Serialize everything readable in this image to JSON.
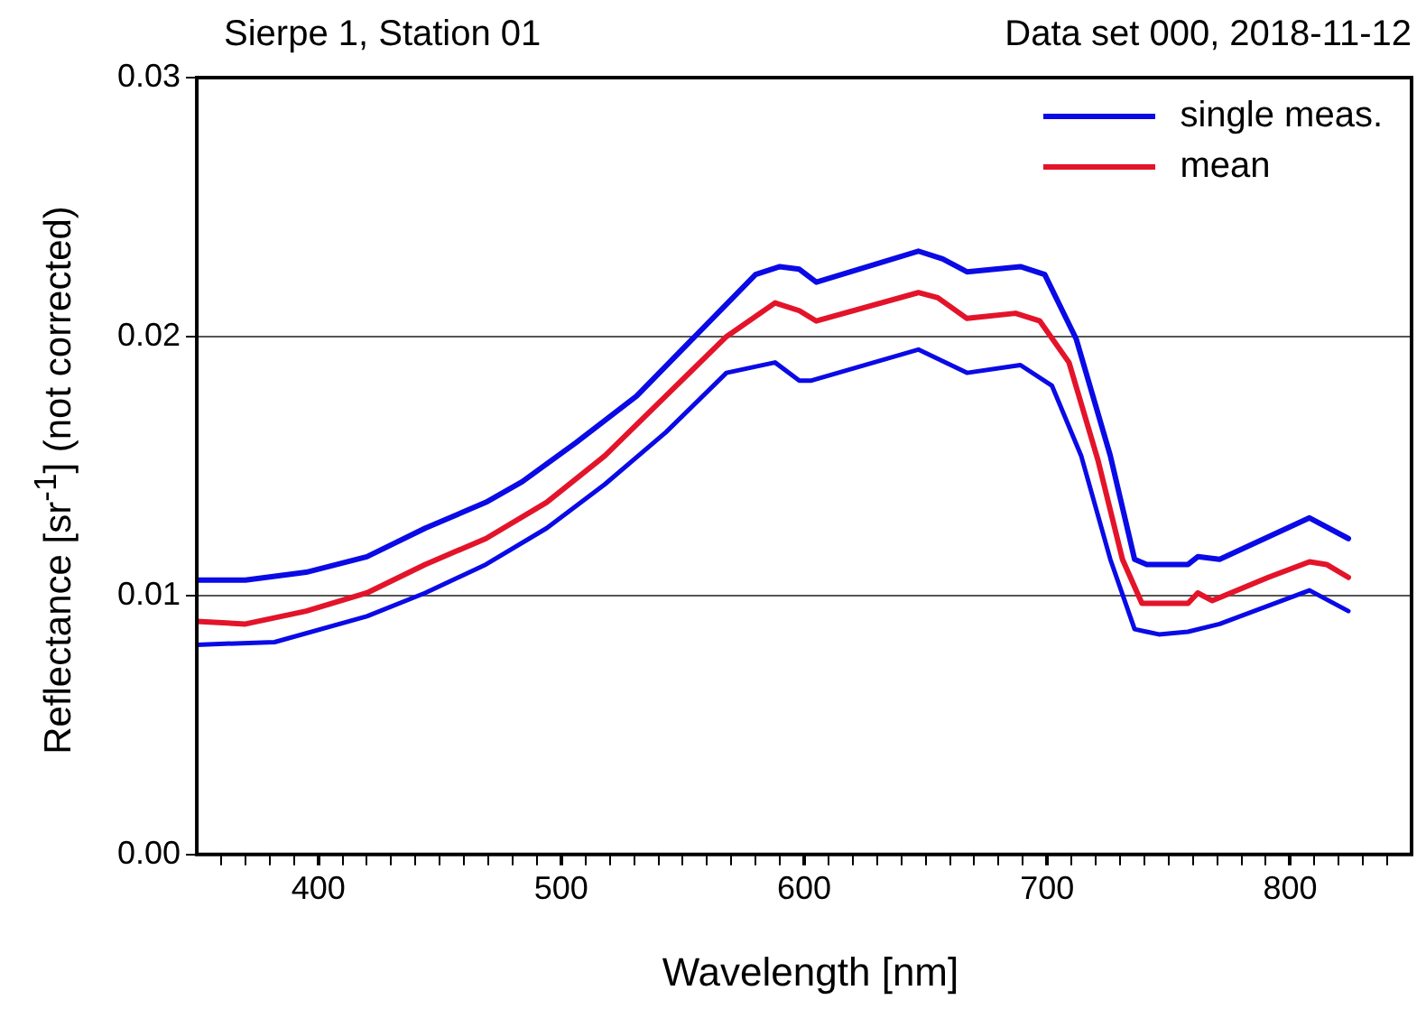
{
  "chart_data": {
    "type": "line",
    "title": "Sierpe 1, Station 01",
    "subtitle": "Data set 000, 2018-11-12",
    "xlabel": "Wavelength [nm]",
    "ylabel": "Reflectance [sr$^{-1}$] (not corrected)",
    "xlim": [
      350,
      850
    ],
    "xticks": [
      {
        "value": 360,
        "label": null
      },
      {
        "value": 370,
        "label": null
      },
      {
        "value": 380,
        "label": null
      },
      {
        "value": 390,
        "label": null
      },
      400,
      {
        "value": 410,
        "label": null
      },
      {
        "value": 420,
        "label": null
      },
      {
        "value": 430,
        "label": null
      },
      {
        "value": 440,
        "label": null
      },
      {
        "value": 450,
        "label": null
      },
      {
        "value": 460,
        "label": null
      },
      {
        "value": 470,
        "label": null
      },
      {
        "value": 480,
        "label": null
      },
      {
        "value": 490,
        "label": null
      },
      500,
      {
        "value": 510,
        "label": null
      },
      {
        "value": 520,
        "label": null
      },
      {
        "value": 530,
        "label": null
      },
      {
        "value": 540,
        "label": null
      },
      {
        "value": 550,
        "label": null
      },
      {
        "value": 560,
        "label": null
      },
      {
        "value": 570,
        "label": null
      },
      {
        "value": 580,
        "label": null
      },
      {
        "value": 590,
        "label": null
      },
      600,
      {
        "value": 610,
        "label": null
      },
      {
        "value": 620,
        "label": null
      },
      {
        "value": 630,
        "label": null
      },
      {
        "value": 640,
        "label": null
      },
      {
        "value": 650,
        "label": null
      },
      {
        "value": 660,
        "label": null
      },
      {
        "value": 670,
        "label": null
      },
      {
        "value": 680,
        "label": null
      },
      {
        "value": 690,
        "label": null
      },
      700,
      {
        "value": 710,
        "label": null
      },
      {
        "value": 720,
        "label": null
      },
      {
        "value": 730,
        "label": null
      },
      {
        "value": 740,
        "label": null
      },
      {
        "value": 750,
        "label": null
      },
      {
        "value": 760,
        "label": null
      },
      {
        "value": 770,
        "label": null
      },
      {
        "value": 780,
        "label": null
      },
      {
        "value": 790,
        "label": null
      },
      800,
      {
        "value": 810,
        "label": null
      },
      {
        "value": 820,
        "label": null
      },
      {
        "value": 830,
        "label": null
      },
      {
        "value": 840,
        "label": null
      }
    ],
    "ylim": [
      0,
      0.03
    ],
    "yticks": [
      {
        "value": 0,
        "label": "0.00"
      },
      {
        "value": 0.01,
        "label": "0.01"
      },
      {
        "value": 0.02,
        "label": "0.02"
      },
      {
        "value": 0.03,
        "label": "0.03"
      }
    ],
    "grid": "y",
    "legend": "top right",
    "marker": "none",
    "line_style": "solid",
    "series": [
      {
        "name": "single meas.",
        "color": "#0a0ae6",
        "x": [
          350,
          370,
          395,
          420,
          444,
          469,
          484,
          506,
          531,
          556,
          580,
          590,
          598,
          605,
          647,
          657,
          667,
          689,
          699,
          712,
          726,
          736,
          741,
          758,
          762,
          771,
          808,
          824
        ],
        "values": [
          0.0106,
          0.0106,
          0.0109,
          0.0115,
          0.0126,
          0.0136,
          0.0144,
          0.0159,
          0.0177,
          0.0201,
          0.0224,
          0.0227,
          0.0226,
          0.0221,
          0.0233,
          0.023,
          0.0225,
          0.0227,
          0.0224,
          0.0199,
          0.0154,
          0.0114,
          0.0112,
          0.0112,
          0.0115,
          0.0114,
          0.013,
          0.0122
        ]
      },
      {
        "color": "#0a0ae6",
        "x": [
          350,
          382,
          420,
          444,
          469,
          494,
          518,
          543,
          568,
          588,
          598,
          603,
          647,
          667,
          689,
          702,
          714,
          726,
          736,
          746,
          758,
          771,
          808,
          824
        ],
        "values": [
          0.0081,
          0.0082,
          0.0092,
          0.0101,
          0.0112,
          0.0126,
          0.0143,
          0.0163,
          0.0186,
          0.019,
          0.0183,
          0.0183,
          0.0195,
          0.0186,
          0.0189,
          0.0181,
          0.0154,
          0.0114,
          0.0087,
          0.0085,
          0.0086,
          0.0089,
          0.0102,
          0.0094
        ]
      },
      {
        "name": "mean",
        "color": "#e3142a",
        "x": [
          350,
          370,
          395,
          420,
          444,
          469,
          494,
          518,
          543,
          568,
          588,
          598,
          605,
          647,
          655,
          667,
          687,
          697,
          709,
          721,
          731,
          739,
          758,
          762,
          768,
          791,
          808,
          815,
          824
        ],
        "values": [
          0.009,
          0.0089,
          0.0094,
          0.0101,
          0.0112,
          0.0122,
          0.0136,
          0.0154,
          0.0177,
          0.02,
          0.0213,
          0.021,
          0.0206,
          0.0217,
          0.0215,
          0.0207,
          0.0209,
          0.0206,
          0.019,
          0.0152,
          0.0114,
          0.0097,
          0.0097,
          0.0101,
          0.0098,
          0.0107,
          0.0113,
          0.0112,
          0.0107
        ]
      }
    ]
  }
}
